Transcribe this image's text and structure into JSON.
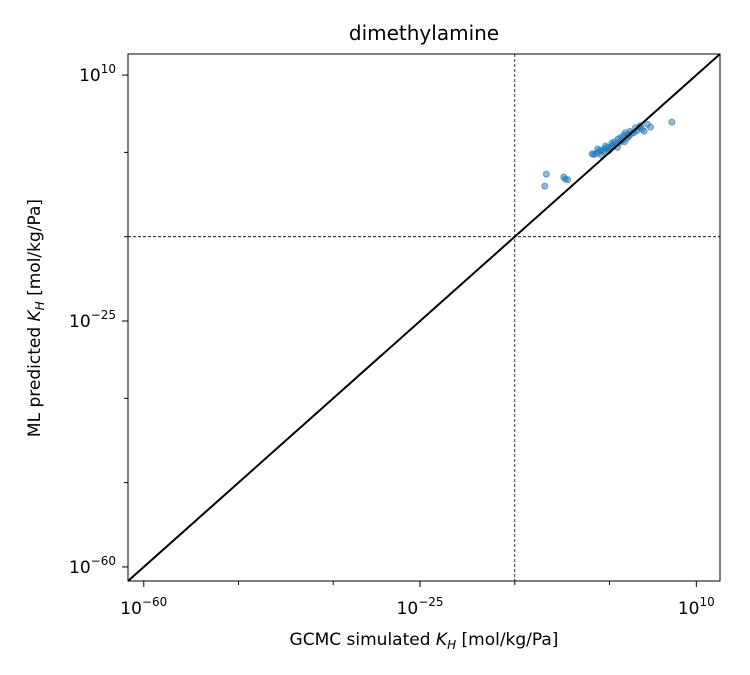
{
  "chart_data": {
    "type": "scatter",
    "title": "dimethylamine",
    "xlabel": "GCMC simulated K_H [mol/kg/Pa]",
    "ylabel": "ML predicted K_H [mol/kg/Pa]",
    "xlabel_prefix": "GCMC simulated ",
    "xlabel_symbol": "K",
    "xlabel_sub": "H",
    "xlabel_suffix": " [mol/kg/Pa]",
    "ylabel_prefix": "ML predicted ",
    "ylabel_symbol": "K",
    "ylabel_sub": "H",
    "ylabel_suffix": " [mol/kg/Pa]",
    "scale": "log",
    "xlim_exp": [
      -62,
      13
    ],
    "ylim_exp": [
      -62,
      13
    ],
    "x_major_ticks_exp": [
      -60,
      -25,
      10
    ],
    "y_major_ticks_exp": [
      -60,
      -25,
      10
    ],
    "x_minor_ticks_exp": [
      -48,
      -36,
      -13,
      -1
    ],
    "y_minor_ticks_exp": [
      -48,
      -36,
      -13,
      -1
    ],
    "x_tick_labels": [
      {
        "base": "10",
        "exp": "−60"
      },
      {
        "base": "10",
        "exp": "−25"
      },
      {
        "base": "10",
        "exp": "10"
      }
    ],
    "y_tick_labels": [
      {
        "base": "10",
        "exp": "−60"
      },
      {
        "base": "10",
        "exp": "−25"
      },
      {
        "base": "10",
        "exp": "10"
      }
    ],
    "reference_lines": {
      "diagonal": "y = x",
      "vline_exp": -13,
      "hline_exp": -13
    },
    "grid": false,
    "series": [
      {
        "marker_color": "#1f77b4",
        "points_log10": [
          [
            -9.0,
            -4.1
          ],
          [
            -9.2,
            -5.8
          ],
          [
            -6.8,
            -4.5
          ],
          [
            -6.6,
            -4.8
          ],
          [
            -6.3,
            -4.9
          ],
          [
            -3.2,
            -1.2
          ],
          [
            -3.0,
            -1.3
          ],
          [
            -2.7,
            -1.2
          ],
          [
            -2.4,
            -0.9
          ],
          [
            -2.1,
            -0.7
          ],
          [
            -1.8,
            -0.9
          ],
          [
            -1.6,
            -0.5
          ],
          [
            -1.3,
            -0.3
          ],
          [
            -1.0,
            -0.6
          ],
          [
            -0.8,
            -0.2
          ],
          [
            -0.5,
            0.0
          ],
          [
            -0.2,
            0.2
          ],
          [
            0.0,
            -0.3
          ],
          [
            0.3,
            0.4
          ],
          [
            0.6,
            0.7
          ],
          [
            0.9,
            0.5
          ],
          [
            1.2,
            1.0
          ],
          [
            1.5,
            1.3
          ],
          [
            1.8,
            1.7
          ],
          [
            2.1,
            1.8
          ],
          [
            2.5,
            2.1
          ],
          [
            2.8,
            2.6
          ],
          [
            3.1,
            2.3
          ],
          [
            3.4,
            2.0
          ],
          [
            3.8,
            3.0
          ],
          [
            4.2,
            2.6
          ],
          [
            -1.5,
            -0.1
          ],
          [
            -0.4,
            0.5
          ],
          [
            0.4,
            1.1
          ],
          [
            1.0,
            1.8
          ],
          [
            1.6,
            2.0
          ],
          [
            -2.5,
            -0.5
          ],
          [
            -0.7,
            0.3
          ],
          [
            0.8,
            1.4
          ],
          [
            2.3,
            2.5
          ],
          [
            -1.1,
            -0.8
          ],
          [
            0.1,
            0.9
          ],
          [
            1.3,
            1.5
          ],
          [
            2.9,
            2.8
          ],
          [
            -2.0,
            -1.4
          ],
          [
            6.9,
            3.3
          ]
        ]
      }
    ]
  }
}
